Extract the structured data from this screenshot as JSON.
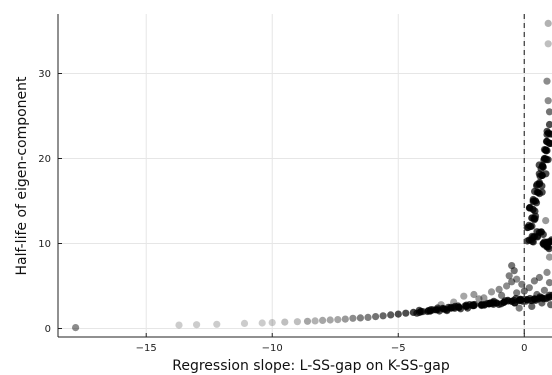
{
  "chart_data": {
    "type": "scatter",
    "title": "",
    "xlabel": "Regression slope: L-SS-gap on K-SS-gap",
    "ylabel": "Half-life of eigen-component",
    "xlim": [
      -18.5,
      1.1
    ],
    "ylim": [
      -1.0,
      37.0
    ],
    "xticks": [
      -15,
      -10,
      -5,
      0
    ],
    "xtick_labels": [
      "−15",
      "−10",
      "−5",
      "0"
    ],
    "yticks": [
      0,
      10,
      20,
      30
    ],
    "ytick_labels": [
      "0",
      "10",
      "20",
      "30"
    ],
    "grid": true,
    "legend": "none",
    "reference_line": {
      "x": 0,
      "style": "dashed",
      "color": "#444444"
    },
    "marker_color": "#000000",
    "series": [
      {
        "points": [
          [
            -17.8,
            0.1,
            0.45
          ],
          [
            -13.7,
            0.4,
            0.2
          ],
          [
            -13.0,
            0.45,
            0.2
          ],
          [
            -12.2,
            0.5,
            0.2
          ],
          [
            -11.1,
            0.6,
            0.2
          ],
          [
            -10.4,
            0.65,
            0.2
          ],
          [
            -10.0,
            0.7,
            0.2
          ],
          [
            -9.5,
            0.75,
            0.25
          ],
          [
            -9.0,
            0.8,
            0.25
          ],
          [
            -8.6,
            0.85,
            0.35
          ],
          [
            -8.3,
            0.9,
            0.3
          ],
          [
            -8.0,
            0.95,
            0.35
          ],
          [
            -7.7,
            1.0,
            0.35
          ],
          [
            -7.4,
            1.05,
            0.35
          ],
          [
            -7.1,
            1.1,
            0.4
          ],
          [
            -6.8,
            1.2,
            0.45
          ],
          [
            -6.5,
            1.25,
            0.5
          ],
          [
            -6.2,
            1.3,
            0.5
          ],
          [
            -5.9,
            1.4,
            0.55
          ],
          [
            -5.6,
            1.5,
            0.6
          ],
          [
            -5.3,
            1.6,
            0.65
          ],
          [
            -5.0,
            1.7,
            0.7
          ],
          [
            -4.7,
            1.8,
            0.7
          ],
          [
            -4.4,
            1.9,
            0.75
          ],
          [
            -4.1,
            2.0,
            0.8
          ],
          [
            -3.8,
            2.1,
            0.8
          ],
          [
            -3.5,
            2.2,
            0.85
          ],
          [
            -3.2,
            2.3,
            0.85
          ],
          [
            -2.9,
            2.4,
            0.9
          ],
          [
            -2.6,
            2.5,
            0.9
          ],
          [
            -2.3,
            2.6,
            0.9
          ],
          [
            -2.0,
            2.7,
            0.9
          ],
          [
            -1.7,
            2.8,
            0.9
          ],
          [
            -1.4,
            2.9,
            0.9
          ],
          [
            -1.1,
            3.0,
            0.9
          ],
          [
            -0.8,
            3.1,
            0.9
          ],
          [
            -0.5,
            3.2,
            0.9
          ],
          [
            -0.2,
            3.3,
            0.9
          ],
          [
            0.1,
            3.4,
            0.9
          ],
          [
            0.4,
            3.5,
            0.9
          ],
          [
            0.7,
            3.6,
            0.9
          ],
          [
            1.0,
            3.7,
            0.9
          ],
          [
            -2.4,
            3.8,
            0.35
          ],
          [
            -2.0,
            4.0,
            0.4
          ],
          [
            -1.6,
            3.6,
            0.4
          ],
          [
            -1.3,
            4.3,
            0.4
          ],
          [
            -1.0,
            4.6,
            0.45
          ],
          [
            -0.7,
            5.0,
            0.45
          ],
          [
            -0.5,
            5.5,
            0.5
          ],
          [
            -0.3,
            4.2,
            0.5
          ],
          [
            -0.6,
            6.2,
            0.5
          ],
          [
            -0.4,
            6.8,
            0.55
          ],
          [
            -0.5,
            7.4,
            0.55
          ],
          [
            -0.3,
            5.8,
            0.45
          ],
          [
            -0.1,
            5.2,
            0.5
          ],
          [
            0.2,
            4.8,
            0.5
          ],
          [
            0.4,
            5.6,
            0.5
          ],
          [
            0.6,
            6.0,
            0.5
          ],
          [
            0.8,
            4.5,
            0.5
          ],
          [
            1.0,
            5.4,
            0.5
          ],
          [
            0.9,
            6.6,
            0.45
          ],
          [
            0.5,
            4.0,
            0.55
          ],
          [
            0.0,
            4.4,
            0.55
          ],
          [
            -0.9,
            3.9,
            0.5
          ],
          [
            -1.8,
            3.5,
            0.4
          ],
          [
            -2.8,
            3.1,
            0.35
          ],
          [
            -3.3,
            2.8,
            0.35
          ],
          [
            0.7,
            3.0,
            0.6
          ],
          [
            0.3,
            2.6,
            0.6
          ],
          [
            -0.2,
            2.4,
            0.5
          ],
          [
            1.05,
            2.8,
            0.6
          ],
          [
            0.2,
            10.4,
            0.8
          ],
          [
            0.4,
            10.8,
            0.8
          ],
          [
            0.6,
            11.3,
            0.8
          ],
          [
            0.75,
            10.0,
            0.8
          ],
          [
            0.9,
            9.6,
            0.8
          ],
          [
            1.0,
            10.2,
            0.8
          ],
          [
            0.25,
            12.0,
            0.85
          ],
          [
            0.3,
            13.0,
            0.85
          ],
          [
            0.35,
            14.0,
            0.85
          ],
          [
            0.45,
            15.0,
            0.85
          ],
          [
            0.55,
            16.0,
            0.85
          ],
          [
            0.6,
            17.0,
            0.85
          ],
          [
            0.7,
            18.0,
            0.85
          ],
          [
            0.75,
            19.0,
            0.85
          ],
          [
            0.8,
            20.0,
            0.85
          ],
          [
            0.85,
            21.0,
            0.85
          ],
          [
            0.9,
            22.0,
            0.85
          ],
          [
            0.95,
            23.0,
            0.8
          ],
          [
            1.0,
            24.0,
            0.7
          ],
          [
            1.0,
            25.5,
            0.55
          ],
          [
            0.95,
            26.8,
            0.45
          ],
          [
            0.9,
            29.1,
            0.45
          ],
          [
            0.95,
            33.5,
            0.25
          ],
          [
            0.95,
            35.9,
            0.3
          ],
          [
            1.0,
            8.4,
            0.4
          ],
          [
            0.85,
            12.7,
            0.4
          ]
        ]
      }
    ]
  }
}
